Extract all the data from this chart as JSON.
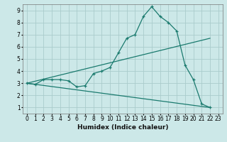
{
  "xlabel": "Humidex (Indice chaleur)",
  "xlim": [
    -0.5,
    23.5
  ],
  "ylim": [
    0.5,
    9.5
  ],
  "xticks": [
    0,
    1,
    2,
    3,
    4,
    5,
    6,
    7,
    8,
    9,
    10,
    11,
    12,
    13,
    14,
    15,
    16,
    17,
    18,
    19,
    20,
    21,
    22,
    23
  ],
  "yticks": [
    1,
    2,
    3,
    4,
    5,
    6,
    7,
    8,
    9
  ],
  "bg_color": "#cce8e8",
  "grid_color": "#aacccc",
  "line_color": "#1a7a6e",
  "line1": {
    "x": [
      0,
      1,
      2,
      3,
      4,
      5,
      6,
      7,
      8,
      9,
      10,
      11,
      12,
      13,
      14,
      15,
      16,
      17,
      18,
      19,
      20,
      21,
      22
    ],
    "y": [
      3.0,
      2.9,
      3.3,
      3.3,
      3.3,
      3.2,
      2.7,
      2.8,
      3.8,
      4.0,
      4.3,
      5.5,
      6.7,
      7.0,
      8.5,
      9.3,
      8.5,
      8.0,
      7.3,
      4.5,
      3.3,
      1.3,
      1.0
    ]
  },
  "line2": {
    "x": [
      0,
      22
    ],
    "y": [
      3.0,
      6.7
    ]
  },
  "line3": {
    "x": [
      0,
      22
    ],
    "y": [
      3.0,
      1.0
    ]
  }
}
